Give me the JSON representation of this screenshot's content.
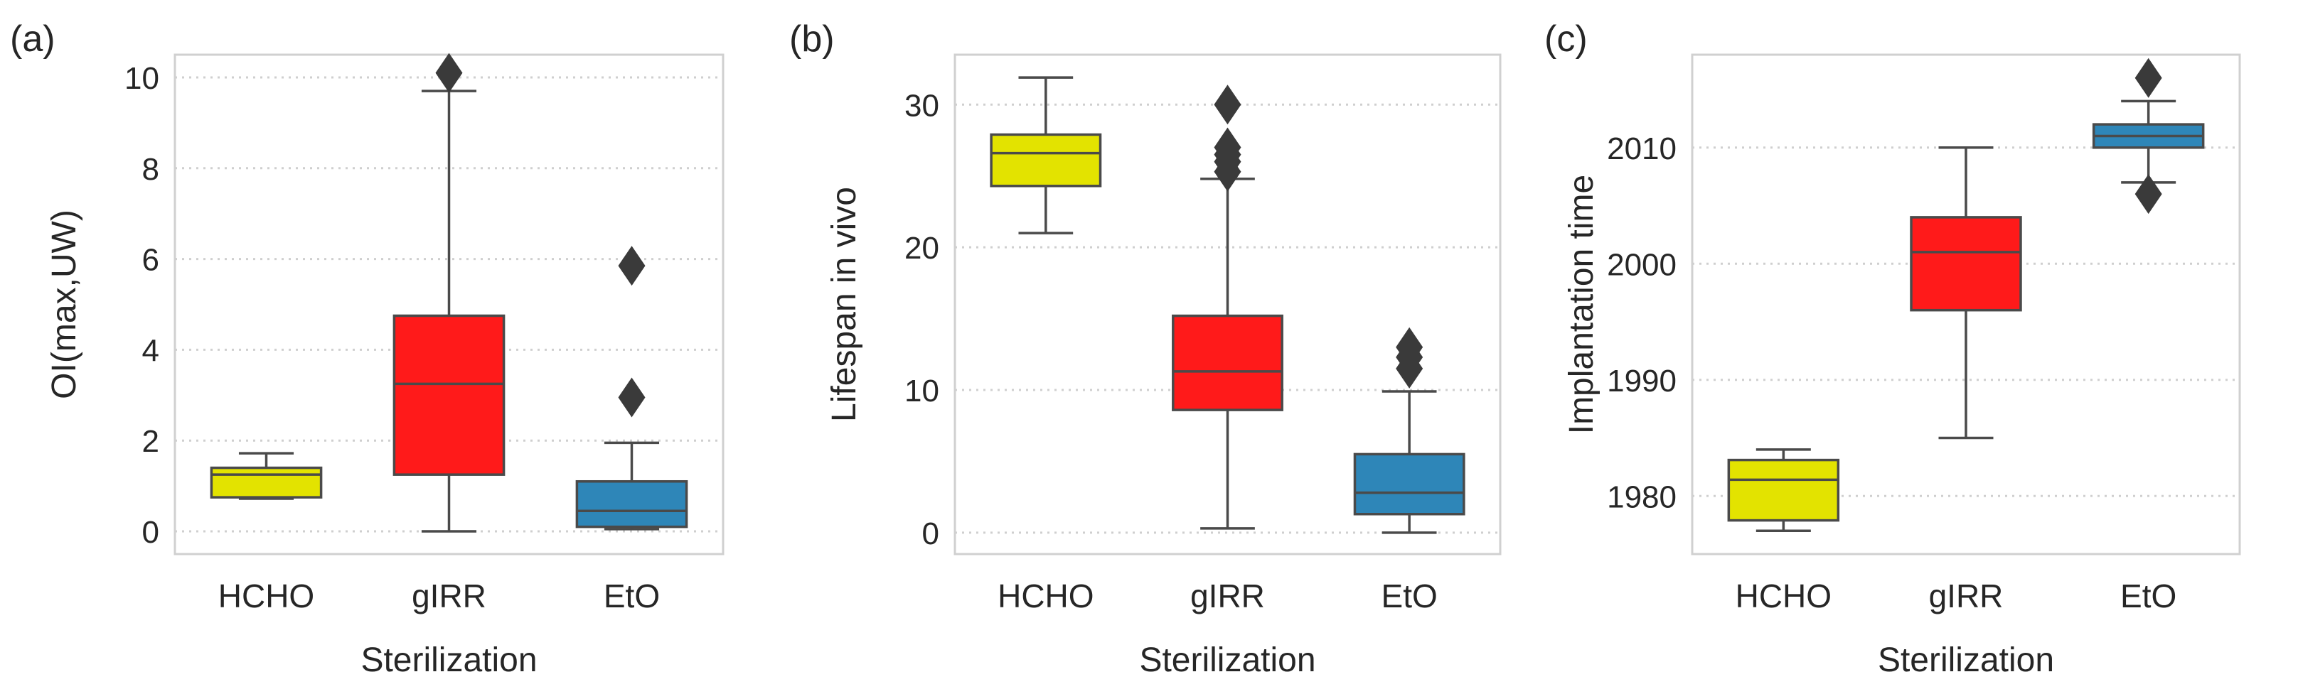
{
  "chart_data": [
    {
      "type": "box",
      "panel_label": "(a)",
      "title": "",
      "xlabel": "Sterilization",
      "ylabel": "OI(max,UW)",
      "ylim": [
        -0.5,
        10.5
      ],
      "yticks": [
        0,
        2,
        4,
        6,
        8,
        10
      ],
      "grid": "y-dotted",
      "categories": [
        "HCHO",
        "gIRR",
        "EtO"
      ],
      "colors": [
        "#e3e300",
        "#ff1a1a",
        "#2e86b8"
      ],
      "boxes": [
        {
          "category": "HCHO",
          "whisker_low": 0.72,
          "q1": 0.75,
          "median": 1.25,
          "q3": 1.4,
          "whisker_high": 1.72,
          "outliers": []
        },
        {
          "category": "gIRR",
          "whisker_low": 0.0,
          "q1": 1.25,
          "median": 3.25,
          "q3": 4.75,
          "whisker_high": 9.7,
          "outliers": [
            10.1
          ]
        },
        {
          "category": "EtO",
          "whisker_low": 0.05,
          "q1": 0.1,
          "median": 0.45,
          "q3": 1.1,
          "whisker_high": 1.95,
          "outliers": [
            2.95,
            5.85
          ]
        }
      ]
    },
    {
      "type": "box",
      "panel_label": "(b)",
      "title": "",
      "xlabel": "Sterilization",
      "ylabel": "Lifespan in vivo",
      "ylim": [
        -1.5,
        33.5
      ],
      "yticks": [
        0,
        10,
        20,
        30
      ],
      "grid": "y-dotted",
      "categories": [
        "HCHO",
        "gIRR",
        "EtO"
      ],
      "colors": [
        "#e3e300",
        "#ff1a1a",
        "#2e86b8"
      ],
      "boxes": [
        {
          "category": "HCHO",
          "whisker_low": 21,
          "q1": 24.3,
          "median": 26.6,
          "q3": 27.9,
          "whisker_high": 31.9,
          "outliers": []
        },
        {
          "category": "gIRR",
          "whisker_low": 0.3,
          "q1": 8.6,
          "median": 11.3,
          "q3": 15.2,
          "whisker_high": 24.8,
          "outliers": [
            25.3,
            26,
            26.5,
            27,
            30
          ]
        },
        {
          "category": "EtO",
          "whisker_low": 0.0,
          "q1": 1.3,
          "median": 2.8,
          "q3": 5.5,
          "whisker_high": 9.9,
          "outliers": [
            11.5,
            12.3,
            13
          ]
        }
      ]
    },
    {
      "type": "box",
      "panel_label": "(c)",
      "title": "",
      "xlabel": "Sterilization",
      "ylabel": "Implantation time",
      "ylim": [
        1975,
        2018
      ],
      "yticks": [
        1980,
        1990,
        2000,
        2010
      ],
      "grid": "y-dotted",
      "categories": [
        "HCHO",
        "gIRR",
        "EtO"
      ],
      "colors": [
        "#e3e300",
        "#ff1a1a",
        "#2e86b8"
      ],
      "boxes": [
        {
          "category": "HCHO",
          "whisker_low": 1977,
          "q1": 1977.9,
          "median": 1981.4,
          "q3": 1983.1,
          "whisker_high": 1984,
          "outliers": []
        },
        {
          "category": "gIRR",
          "whisker_low": 1985,
          "q1": 1996,
          "median": 2001,
          "q3": 2004,
          "whisker_high": 2010,
          "outliers": []
        },
        {
          "category": "EtO",
          "whisker_low": 2007,
          "q1": 2010,
          "median": 2011,
          "q3": 2012,
          "whisker_high": 2014,
          "outliers": [
            2006,
            2016
          ]
        }
      ]
    }
  ]
}
